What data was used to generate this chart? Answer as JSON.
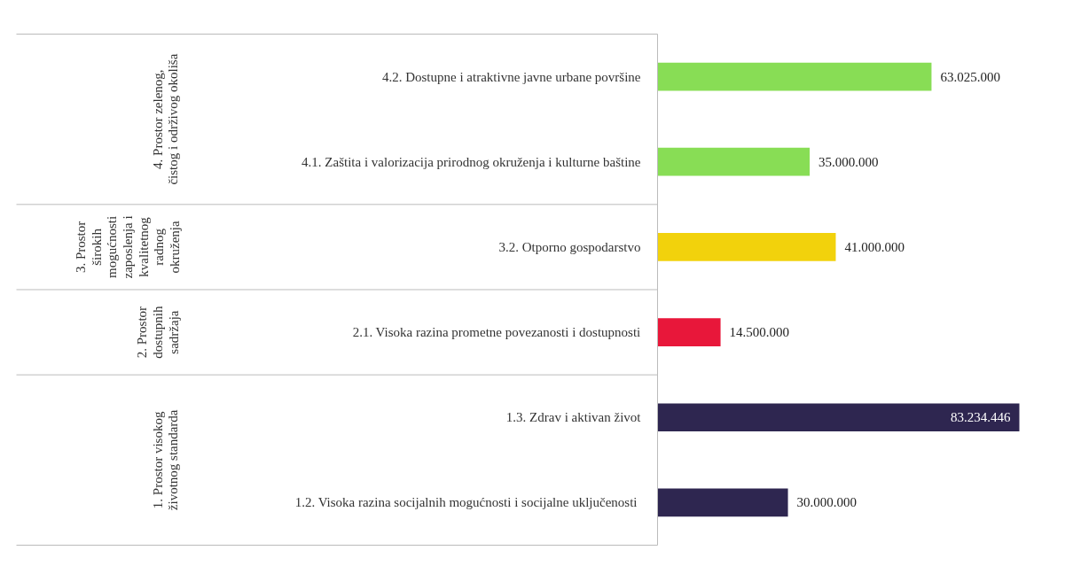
{
  "chart_data": {
    "type": "bar",
    "orientation": "horizontal",
    "categories": [
      "4.2. Dostupne i atraktivne javne urbane površine",
      "4.1. Zaštita i valorizacija prirodnog okruženja i kulturne baštine",
      "3.2. Otporno gospodarstvo",
      "2.1. Visoka razina prometne povezanosti i dostupnosti",
      "1.3. Zdrav i aktivan život",
      "1.2. Visoka razina socijalnih mogućnosti  i socijalne uključenosti"
    ],
    "values": [
      63025000,
      35000000,
      41000000,
      14500000,
      83234446,
      30000000
    ],
    "colors": [
      "#88dd55",
      "#88dd55",
      "#f2d20c",
      "#e8173a",
      "#2e2650",
      "#2e2650"
    ],
    "value_labels": [
      "63.025.000",
      "35.000.000",
      "41.000.000",
      "14.500.000",
      "83.234.446",
      "30.000.000"
    ],
    "annotations": [
      "4. Prostor zelenog, čistog i održivog okoliša",
      "3. Prostor širokih mogućnosti zaposlenja i kvalitetnog radnog okruženja",
      "2. Prostor dostupnih sadržaja",
      "1. Prostor visokog životnog standarda"
    ]
  }
}
